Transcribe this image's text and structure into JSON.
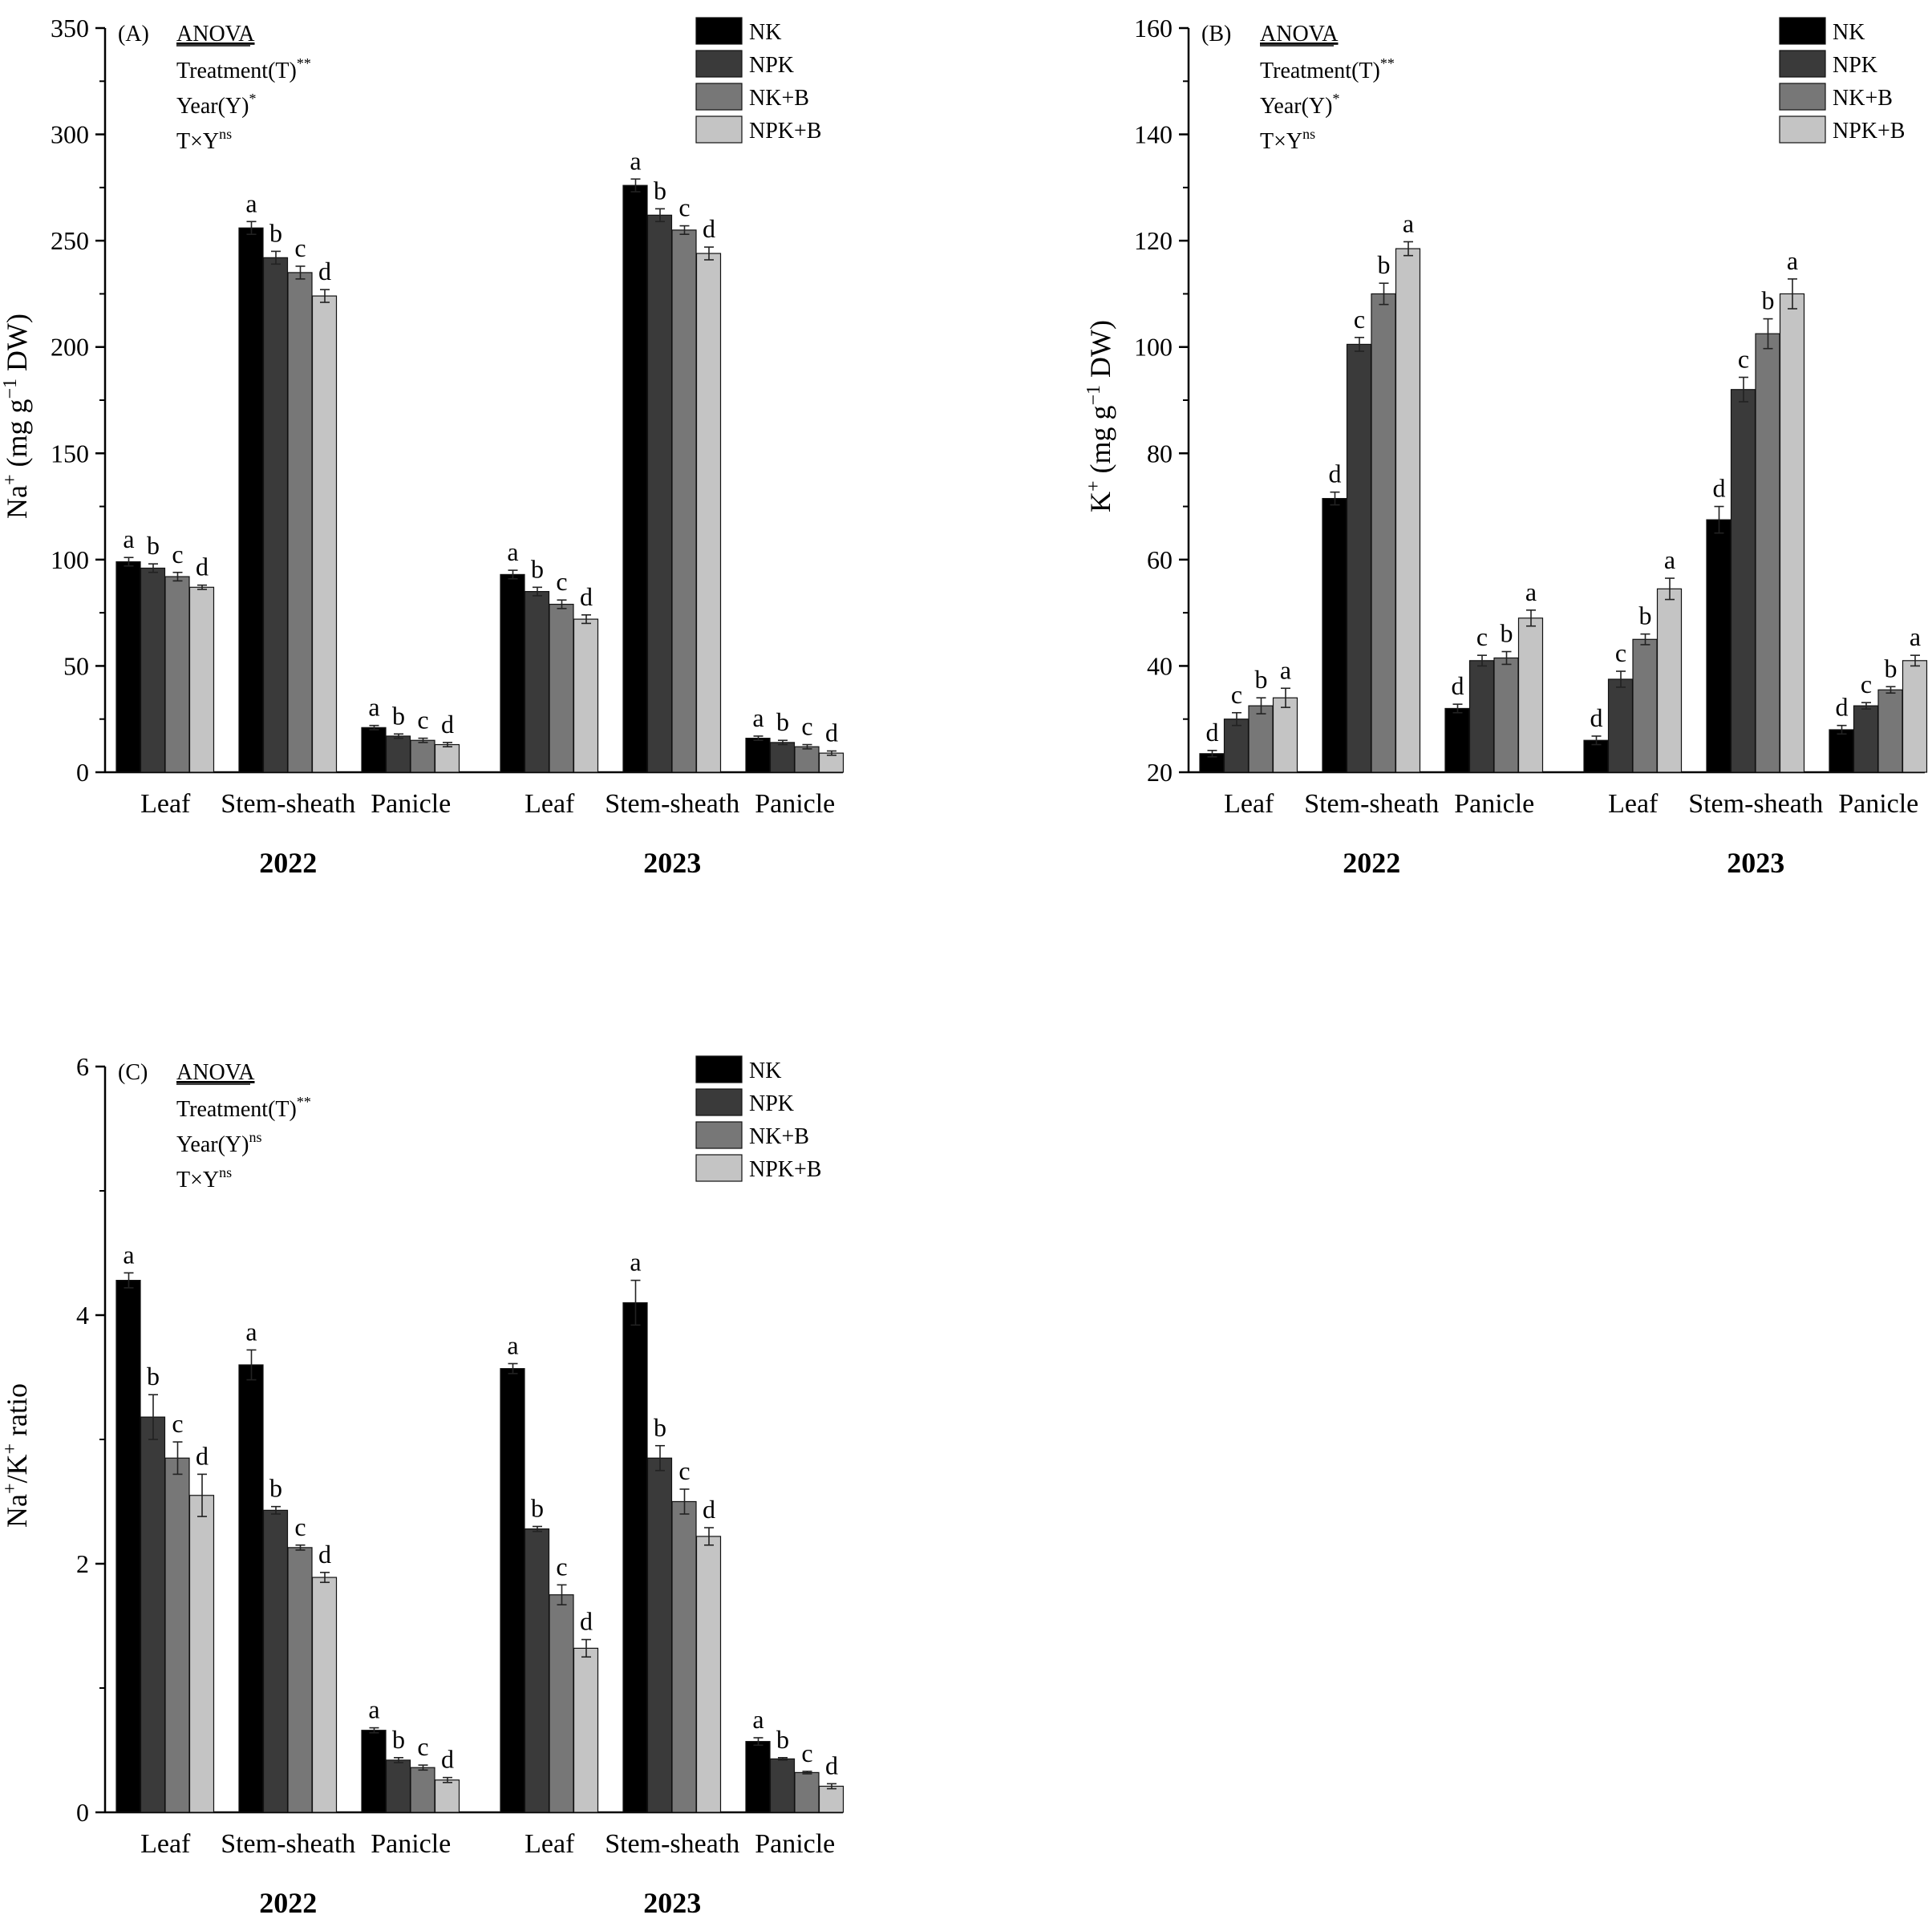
{
  "chart_data": [
    {
      "type": "bar",
      "panel_label": "(A)",
      "ylabel": "Na+ (mg g−1 DW)",
      "ylabel_parts": {
        "base": "Na",
        "ion_sup": "+",
        "unit_pre": " (mg g",
        "unit_sup": "−1",
        "unit_post": " DW)"
      },
      "ylim": [
        0,
        350
      ],
      "yticks": [
        0,
        50,
        100,
        150,
        200,
        250,
        300,
        350
      ],
      "years": [
        "2022",
        "2023"
      ],
      "categories": [
        "Leaf",
        "Stem-sheath",
        "Panicle",
        "Leaf",
        "Stem-sheath",
        "Panicle"
      ],
      "anova": {
        "title": "ANOVA",
        "lines": [
          {
            "text": "Treatment(T)",
            "sup": "**"
          },
          {
            "text": "Year(Y)",
            "sup": "*"
          },
          {
            "text": "T×Y",
            "sup": "ns"
          }
        ]
      },
      "series": [
        {
          "name": "NK",
          "color": "#000000",
          "values": [
            99,
            256,
            21,
            93,
            276,
            16
          ],
          "errors": [
            2,
            3,
            1,
            2,
            3,
            1
          ],
          "letters": [
            "a",
            "a",
            "a",
            "a",
            "a",
            "a"
          ]
        },
        {
          "name": "NPK",
          "color": "#3a3a3a",
          "values": [
            96,
            242,
            17,
            85,
            262,
            14
          ],
          "errors": [
            2,
            3,
            1,
            2,
            3,
            1
          ],
          "letters": [
            "b",
            "b",
            "b",
            "b",
            "b",
            "b"
          ]
        },
        {
          "name": "NK+B",
          "color": "#777777",
          "values": [
            92,
            235,
            15,
            79,
            255,
            12
          ],
          "errors": [
            2,
            3,
            1,
            2,
            2,
            1
          ],
          "letters": [
            "c",
            "c",
            "c",
            "c",
            "c",
            "c"
          ]
        },
        {
          "name": "NPK+B",
          "color": "#c4c4c4",
          "values": [
            87,
            224,
            13,
            72,
            244,
            9
          ],
          "errors": [
            1,
            3,
            1,
            2,
            3,
            1
          ],
          "letters": [
            "d",
            "d",
            "d",
            "d",
            "d",
            "d"
          ]
        }
      ]
    },
    {
      "type": "bar",
      "panel_label": "(B)",
      "ylabel": "K+ (mg g−1 DW)",
      "ylabel_parts": {
        "base": "K",
        "ion_sup": "+",
        "unit_pre": " (mg g",
        "unit_sup": "−1",
        "unit_post": " DW)"
      },
      "ylim": [
        20,
        160
      ],
      "yticks": [
        20,
        40,
        60,
        80,
        100,
        120,
        140,
        160
      ],
      "years": [
        "2022",
        "2023"
      ],
      "categories": [
        "Leaf",
        "Stem-sheath",
        "Panicle",
        "Leaf",
        "Stem-sheath",
        "Panicle"
      ],
      "anova": {
        "title": "ANOVA",
        "lines": [
          {
            "text": "Treatment(T)",
            "sup": "**"
          },
          {
            "text": "Year(Y)",
            "sup": "*"
          },
          {
            "text": "T×Y",
            "sup": "ns"
          }
        ]
      },
      "series": [
        {
          "name": "NK",
          "color": "#000000",
          "values": [
            23.5,
            71.5,
            32,
            26,
            67.5,
            28
          ],
          "errors": [
            0.6,
            1.2,
            0.8,
            0.8,
            2.5,
            0.8
          ],
          "letters": [
            "d",
            "d",
            "d",
            "d",
            "d",
            "d"
          ]
        },
        {
          "name": "NPK",
          "color": "#3a3a3a",
          "values": [
            30,
            100.5,
            41,
            37.5,
            92,
            32.5
          ],
          "errors": [
            1.2,
            1.3,
            1,
            1.5,
            2.3,
            0.6
          ],
          "letters": [
            "c",
            "c",
            "c",
            "c",
            "c",
            "c"
          ]
        },
        {
          "name": "NK+B",
          "color": "#777777",
          "values": [
            32.5,
            110,
            41.5,
            45,
            102.5,
            35.5
          ],
          "errors": [
            1.5,
            2,
            1.2,
            1,
            2.8,
            0.6
          ],
          "letters": [
            "b",
            "b",
            "b",
            "b",
            "b",
            "b"
          ]
        },
        {
          "name": "NPK+B",
          "color": "#c4c4c4",
          "values": [
            34,
            118.5,
            49,
            54.5,
            110,
            41
          ],
          "errors": [
            1.8,
            1.3,
            1.5,
            2,
            2.8,
            1
          ],
          "letters": [
            "a",
            "a",
            "a",
            "a",
            "a",
            "a"
          ]
        }
      ]
    },
    {
      "type": "bar",
      "panel_label": "(C)",
      "ylabel": "Na+/K+ ratio",
      "ylabel_parts": {
        "base": "Na",
        "ion_sup": "+",
        "unit_pre": "/K",
        "unit_sup": "+",
        "unit_post": " ratio"
      },
      "ylim": [
        0,
        6
      ],
      "yticks": [
        0,
        2,
        4,
        6
      ],
      "years": [
        "2022",
        "2023"
      ],
      "categories": [
        "Leaf",
        "Stem-sheath",
        "Panicle",
        "Leaf",
        "Stem-sheath",
        "Panicle"
      ],
      "anova": {
        "title": "ANOVA",
        "lines": [
          {
            "text": "Treatment(T)",
            "sup": "**"
          },
          {
            "text": "Year(Y)",
            "sup": "ns"
          },
          {
            "text": "T×Y",
            "sup": "ns"
          }
        ]
      },
      "series": [
        {
          "name": "NK",
          "color": "#000000",
          "values": [
            4.28,
            3.6,
            0.66,
            3.57,
            4.1,
            0.57
          ],
          "errors": [
            0.06,
            0.12,
            0.02,
            0.04,
            0.18,
            0.03
          ],
          "letters": [
            "a",
            "a",
            "a",
            "a",
            "a",
            "a"
          ]
        },
        {
          "name": "NPK",
          "color": "#3a3a3a",
          "values": [
            3.18,
            2.43,
            0.42,
            2.28,
            2.85,
            0.43
          ],
          "errors": [
            0.18,
            0.03,
            0.02,
            0.02,
            0.1,
            0.01
          ],
          "letters": [
            "b",
            "b",
            "b",
            "b",
            "b",
            "b"
          ]
        },
        {
          "name": "NK+B",
          "color": "#777777",
          "values": [
            2.85,
            2.13,
            0.36,
            1.75,
            2.5,
            0.32
          ],
          "errors": [
            0.13,
            0.02,
            0.02,
            0.08,
            0.1,
            0.01
          ],
          "letters": [
            "c",
            "c",
            "c",
            "c",
            "c",
            "c"
          ]
        },
        {
          "name": "NPK+B",
          "color": "#c4c4c4",
          "values": [
            2.55,
            1.89,
            0.26,
            1.32,
            2.22,
            0.21
          ],
          "errors": [
            0.17,
            0.04,
            0.02,
            0.07,
            0.07,
            0.02
          ],
          "letters": [
            "d",
            "d",
            "d",
            "d",
            "d",
            "d"
          ]
        }
      ]
    }
  ]
}
